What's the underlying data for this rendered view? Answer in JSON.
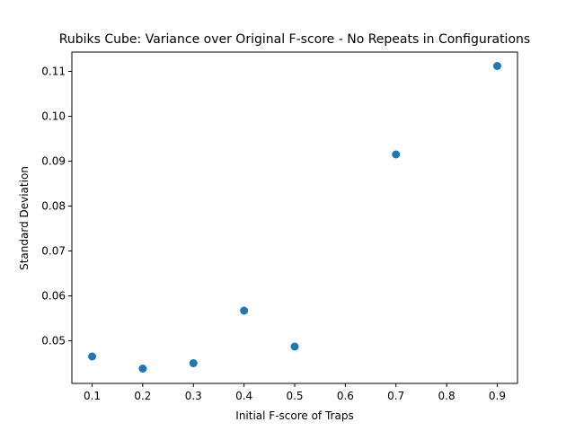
{
  "chart_data": {
    "type": "scatter",
    "title": "Rubiks Cube: Variance over Original F-score - No Repeats in Configurations",
    "xlabel": "Initial F-score of Traps",
    "ylabel": "Standard Deviation",
    "xlim": [
      0.06,
      0.94
    ],
    "ylim": [
      0.0405,
      0.1143
    ],
    "x_ticks": [
      0.1,
      0.2,
      0.3,
      0.4,
      0.5,
      0.6,
      0.7,
      0.8,
      0.9
    ],
    "x_tick_labels": [
      "0.1",
      "0.2",
      "0.3",
      "0.4",
      "0.5",
      "0.6",
      "0.7",
      "0.8",
      "0.9"
    ],
    "y_ticks": [
      0.05,
      0.06,
      0.07,
      0.08,
      0.09,
      0.1,
      0.11
    ],
    "y_tick_labels": [
      "0.05",
      "0.06",
      "0.07",
      "0.08",
      "0.09",
      "0.10",
      "0.11"
    ],
    "grid": false,
    "legend": "none",
    "marker_color": "#1f77b4",
    "series": [
      {
        "points": [
          {
            "x": 0.1,
            "y": 0.0465
          },
          {
            "x": 0.2,
            "y": 0.0438
          },
          {
            "x": 0.3,
            "y": 0.045
          },
          {
            "x": 0.4,
            "y": 0.0567
          },
          {
            "x": 0.5,
            "y": 0.0487
          },
          {
            "x": 0.7,
            "y": 0.0915
          },
          {
            "x": 0.9,
            "y": 0.1112
          }
        ]
      }
    ]
  }
}
